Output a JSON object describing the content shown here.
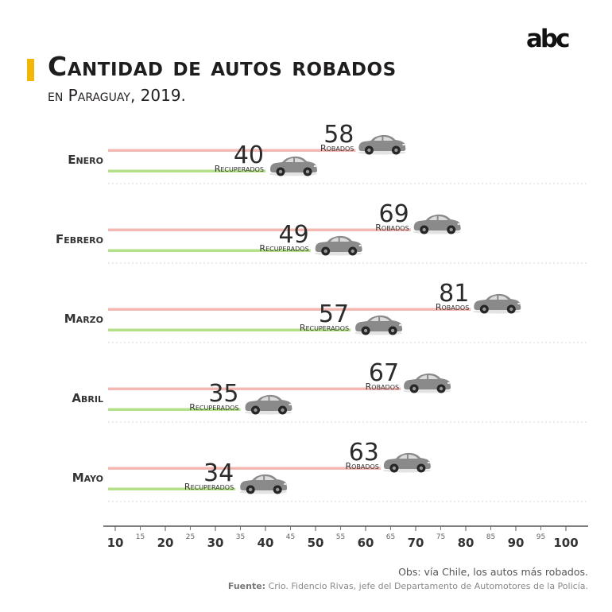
{
  "brand": {
    "logo_text": "abc",
    "accent_color": "#f2b705"
  },
  "chart_data": {
    "type": "bar",
    "title": "Cantidad de autos robados",
    "subtitle": "en Paraguay, 2019.",
    "categories": [
      "Enero",
      "Febrero",
      "Marzo",
      "Abril",
      "Mayo"
    ],
    "series": [
      {
        "name": "Robados",
        "color": "#f4b8b3",
        "values": [
          58,
          69,
          81,
          67,
          63
        ]
      },
      {
        "name": "Recuperados",
        "color": "#b5e08a",
        "values": [
          40,
          49,
          57,
          35,
          34
        ]
      }
    ],
    "xlim": [
      10,
      100
    ],
    "x_ticks_major": [
      10,
      20,
      30,
      40,
      50,
      60,
      70,
      80,
      90,
      100
    ],
    "x_ticks_minor": [
      15,
      25,
      35,
      45,
      55,
      65,
      75,
      85,
      95
    ],
    "grid": false
  },
  "footer": {
    "obs": "Obs: vía Chile, los autos más robados.",
    "source_label": "Fuente:",
    "source_text": "Crio. Fidencio Rivas, jefe del Departamento de Automotores de la Policía."
  }
}
